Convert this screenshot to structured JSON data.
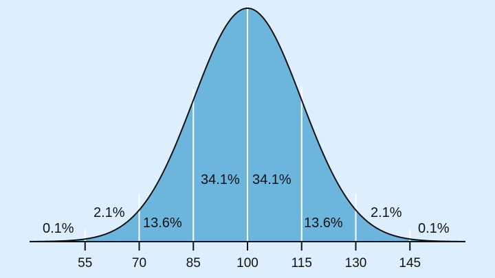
{
  "chart_data": {
    "type": "area",
    "title": "",
    "xlabel": "",
    "ylabel": "",
    "distribution": "normal",
    "mean": 100,
    "std": 15,
    "x_ticks": [
      55,
      70,
      85,
      100,
      115,
      130,
      145
    ],
    "x_tick_labels": [
      "55",
      "70",
      "85",
      "100",
      "115",
      "130",
      "145"
    ],
    "segments": [
      {
        "range": [
          null,
          55
        ],
        "percent": 0.1,
        "label": "0.1%"
      },
      {
        "range": [
          55,
          70
        ],
        "percent": 2.1,
        "label": "2.1%"
      },
      {
        "range": [
          70,
          85
        ],
        "percent": 13.6,
        "label": "13.6%"
      },
      {
        "range": [
          85,
          100
        ],
        "percent": 34.1,
        "label": "34.1%"
      },
      {
        "range": [
          100,
          115
        ],
        "percent": 34.1,
        "label": "34.1%"
      },
      {
        "range": [
          115,
          130
        ],
        "percent": 13.6,
        "label": "13.6%"
      },
      {
        "range": [
          130,
          145
        ],
        "percent": 2.1,
        "label": "2.1%"
      },
      {
        "range": [
          145,
          null
        ],
        "percent": 0.1,
        "label": "0.1%"
      }
    ],
    "grid": false,
    "legend": null
  },
  "colors": {
    "background": "#ddeefd",
    "fill": "#6cb6de",
    "curve": "#111111",
    "dividers": "#ffffff"
  }
}
